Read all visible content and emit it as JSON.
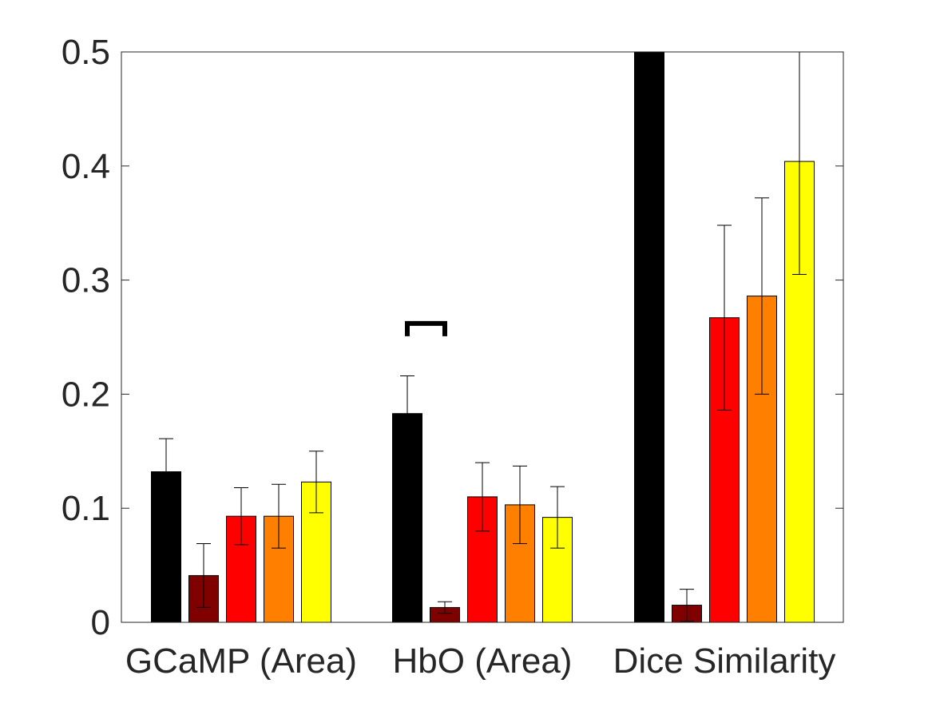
{
  "chart_data": {
    "type": "bar",
    "title": "",
    "xlabel": "",
    "ylabel": "",
    "ylim": [
      0,
      0.5
    ],
    "yticks": [
      0,
      0.1,
      0.2,
      0.3,
      0.4,
      0.5
    ],
    "ytick_labels": [
      "0",
      "0.1",
      "0.2",
      "0.3",
      "0.4",
      "0.5"
    ],
    "grid": false,
    "legend": "none",
    "categories": [
      "GCaMP (Area)",
      "HbO (Area)",
      "Dice Similarity"
    ],
    "series": [
      {
        "color": "#000000",
        "values": [
          0.132,
          0.183,
          0.5
        ],
        "errors": [
          0.029,
          0.033,
          null
        ]
      },
      {
        "color": "#800000",
        "values": [
          0.041,
          0.013,
          0.015
        ],
        "errors": [
          0.028,
          0.005,
          0.014
        ]
      },
      {
        "color": "#ff0000",
        "values": [
          0.093,
          0.11,
          0.267
        ],
        "errors": [
          0.025,
          0.03,
          0.081
        ]
      },
      {
        "color": "#ff8000",
        "values": [
          0.093,
          0.103,
          0.286
        ],
        "errors": [
          0.028,
          0.034,
          0.086
        ]
      },
      {
        "color": "#ffff00",
        "values": [
          0.123,
          0.092,
          0.404
        ],
        "errors": [
          0.027,
          0.027,
          0.099
        ]
      }
    ],
    "annotations": [
      {
        "type": "significance-bracket",
        "category": "HbO (Area)",
        "series": [
          0,
          1
        ],
        "y": 0.262
      }
    ]
  }
}
